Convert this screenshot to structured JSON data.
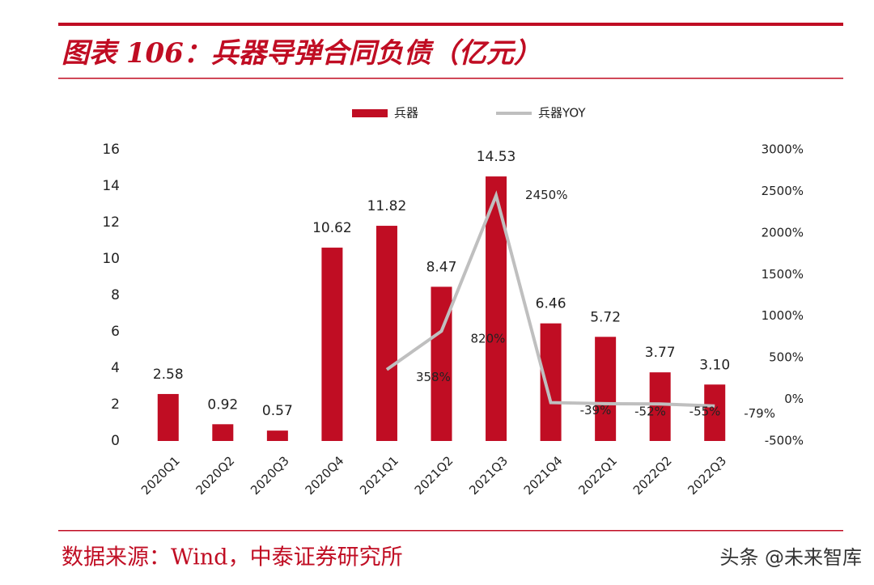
{
  "title": "图表 106：兵器导弹合同负债（亿元）",
  "source": "数据来源：Wind，中泰证券研究所",
  "watermark": "头条 @未来智库",
  "chart_data": {
    "type": "bar",
    "categories": [
      "2020Q1",
      "2020Q2",
      "2020Q3",
      "2020Q4",
      "2021Q1",
      "2021Q2",
      "2021Q3",
      "2021Q4",
      "2022Q1",
      "2022Q2",
      "2022Q3"
    ],
    "series": [
      {
        "name": "兵器",
        "type": "bar",
        "color": "#c00d23",
        "values": [
          2.58,
          0.92,
          0.57,
          10.62,
          11.82,
          8.47,
          14.53,
          6.46,
          5.72,
          3.77,
          3.1
        ],
        "value_labels": [
          "2.58",
          "0.92",
          "0.57",
          "10.62",
          "11.82",
          "8.47",
          "14.53",
          "6.46",
          "5.72",
          "3.77",
          "3.10"
        ]
      },
      {
        "name": "兵器YOY",
        "type": "line",
        "axis": "y2",
        "color": "#bfbfbf",
        "values": [
          null,
          null,
          null,
          null,
          358,
          820,
          2450,
          -39,
          -52,
          -55,
          -79
        ],
        "value_labels": [
          null,
          null,
          null,
          null,
          "358%",
          "820%",
          "2450%",
          "-39%",
          "-52%",
          "-55%",
          "-79%"
        ]
      }
    ],
    "ylim": [
      0,
      16
    ],
    "yticks": [
      0,
      2,
      4,
      6,
      8,
      10,
      12,
      14,
      16
    ],
    "y2lim": [
      -500,
      3000
    ],
    "y2ticks": [
      {
        "value": -500,
        "label": "-500%"
      },
      {
        "value": 0,
        "label": "0%"
      },
      {
        "value": 500,
        "label": "500%"
      },
      {
        "value": 1000,
        "label": "1000%"
      },
      {
        "value": 1500,
        "label": "1500%"
      },
      {
        "value": 2000,
        "label": "2000%"
      },
      {
        "value": 2500,
        "label": "2500%"
      },
      {
        "value": 3000,
        "label": "3000%"
      }
    ],
    "legend": "top"
  }
}
